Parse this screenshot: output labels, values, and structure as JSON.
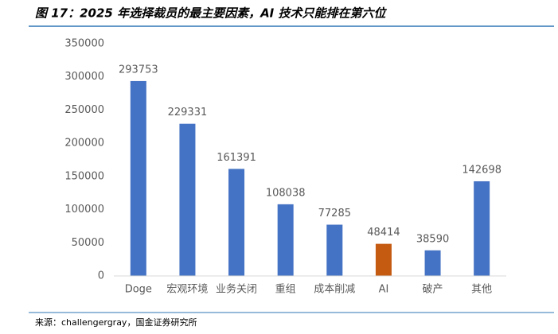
{
  "chart_data": {
    "type": "bar",
    "title": "图 17：2025 年选择裁员的最主要因素，AI 技术只能排在第六位",
    "source": "来源：challengergray，国金证券研究所",
    "categories": [
      "Doge",
      "宏观环境",
      "业务关闭",
      "重组",
      "成本削减",
      "AI",
      "破产",
      "其他"
    ],
    "values": [
      293753,
      229331,
      161391,
      108038,
      77285,
      48414,
      38590,
      142698
    ],
    "colors": [
      "#4472c4",
      "#4472c4",
      "#4472c4",
      "#4472c4",
      "#4472c4",
      "#c55a11",
      "#4472c4",
      "#4472c4"
    ],
    "ylim": [
      0,
      350000
    ],
    "yticks": [
      0,
      50000,
      100000,
      150000,
      200000,
      250000,
      300000,
      350000
    ],
    "grid": false
  }
}
